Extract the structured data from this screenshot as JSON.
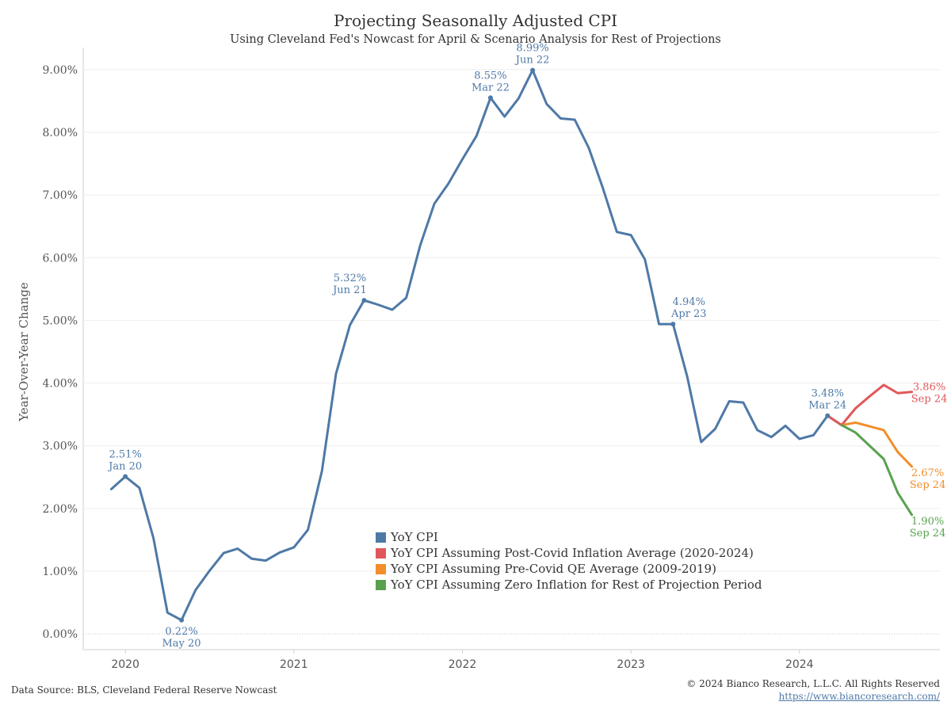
{
  "title": "Projecting Seasonally Adjusted CPI",
  "subtitle": "Using Cleveland Fed's Nowcast for April & Scenario Analysis for Rest of Projections",
  "source": "Data Source: BLS, Cleveland Federal Reserve Nowcast",
  "copyright": "© 2024 Bianco Research, L.L.C. All Rights Reserved",
  "url": "https://www.biancoresearch.com/",
  "chart_data": {
    "type": "line",
    "ylabel": "Year-Over-Year Change",
    "xlabel": "",
    "ylim": [
      -0.25,
      9.25
    ],
    "yticks": [
      0,
      1,
      2,
      3,
      4,
      5,
      6,
      7,
      8,
      9
    ],
    "ytick_labels": [
      "0.00%",
      "1.00%",
      "2.00%",
      "3.00%",
      "4.00%",
      "5.00%",
      "6.00%",
      "7.00%",
      "8.00%",
      "9.00%"
    ],
    "xticks": [
      "2020-01",
      "2021-01",
      "2022-01",
      "2023-01",
      "2024-01"
    ],
    "xtick_labels": [
      "2020",
      "2021",
      "2022",
      "2023",
      "2024"
    ],
    "xlim": [
      "2019-10",
      "2024-11"
    ],
    "grid": true,
    "legend_position": "bottom-center",
    "series": [
      {
        "name": "YoY CPI",
        "color": "#4e79a7",
        "x": [
          "2019-12",
          "2020-01",
          "2020-02",
          "2020-03",
          "2020-04",
          "2020-05",
          "2020-06",
          "2020-07",
          "2020-08",
          "2020-09",
          "2020-10",
          "2020-11",
          "2020-12",
          "2021-01",
          "2021-02",
          "2021-03",
          "2021-04",
          "2021-05",
          "2021-06",
          "2021-07",
          "2021-08",
          "2021-09",
          "2021-10",
          "2021-11",
          "2021-12",
          "2022-01",
          "2022-02",
          "2022-03",
          "2022-04",
          "2022-05",
          "2022-06",
          "2022-07",
          "2022-08",
          "2022-09",
          "2022-10",
          "2022-11",
          "2022-12",
          "2023-01",
          "2023-02",
          "2023-03",
          "2023-04",
          "2023-05",
          "2023-06",
          "2023-07",
          "2023-08",
          "2023-09",
          "2023-10",
          "2023-11",
          "2023-12",
          "2024-01",
          "2024-02",
          "2024-03",
          "2024-04"
        ],
        "y": [
          2.31,
          2.51,
          2.33,
          1.53,
          0.34,
          0.22,
          0.7,
          1.01,
          1.29,
          1.36,
          1.2,
          1.17,
          1.3,
          1.38,
          1.66,
          2.6,
          4.15,
          4.93,
          5.32,
          5.25,
          5.17,
          5.36,
          6.2,
          6.86,
          7.18,
          7.57,
          7.94,
          8.55,
          8.25,
          8.54,
          8.99,
          8.45,
          8.22,
          8.2,
          7.75,
          7.11,
          6.41,
          6.36,
          5.97,
          4.94,
          4.94,
          4.11,
          3.06,
          3.27,
          3.71,
          3.69,
          3.25,
          3.14,
          3.32,
          3.11,
          3.17,
          3.48,
          3.33
        ]
      },
      {
        "name": "YoY CPI Assuming Post-Covid Inflation Average (2020-2024)",
        "color": "#e15759",
        "x": [
          "2024-03",
          "2024-04",
          "2024-05",
          "2024-06",
          "2024-07",
          "2024-08",
          "2024-09"
        ],
        "y": [
          3.48,
          3.33,
          3.6,
          3.79,
          3.97,
          3.84,
          3.86
        ]
      },
      {
        "name": "YoY CPI Assuming Pre-Covid QE Average (2009-2019)",
        "color": "#f28e2b",
        "x": [
          "2024-04",
          "2024-05",
          "2024-06",
          "2024-07",
          "2024-08",
          "2024-09"
        ],
        "y": [
          3.33,
          3.37,
          3.31,
          3.25,
          2.9,
          2.67
        ]
      },
      {
        "name": "YoY CPI Assuming Zero Inflation for Rest of Projection Period",
        "color": "#59a14f",
        "x": [
          "2024-04",
          "2024-05",
          "2024-06",
          "2024-07",
          "2024-08",
          "2024-09"
        ],
        "y": [
          3.33,
          3.21,
          3.0,
          2.79,
          2.25,
          1.9
        ]
      }
    ],
    "annotations": [
      {
        "x": "2020-01",
        "y": 2.51,
        "value": "2.51%",
        "date": "Jan 20",
        "series": 0,
        "pos": "above"
      },
      {
        "x": "2020-05",
        "y": 0.22,
        "value": "0.22%",
        "date": "May 20",
        "series": 0,
        "pos": "below"
      },
      {
        "x": "2021-06",
        "y": 5.32,
        "value": "5.32%",
        "date": "Jun 21",
        "series": 0,
        "pos": "above-left"
      },
      {
        "x": "2022-03",
        "y": 8.55,
        "value": "8.55%",
        "date": "Mar 22",
        "series": 0,
        "pos": "above"
      },
      {
        "x": "2022-06",
        "y": 8.99,
        "value": "8.99%",
        "date": "Jun 22",
        "series": 0,
        "pos": "above"
      },
      {
        "x": "2023-04",
        "y": 4.94,
        "value": "4.94%",
        "date": "Apr 23",
        "series": 0,
        "pos": "above-right"
      },
      {
        "x": "2024-03",
        "y": 3.48,
        "value": "3.48%",
        "date": "Mar 24",
        "series": 0,
        "pos": "above"
      },
      {
        "x": "2024-09",
        "y": 3.86,
        "value": "3.86%",
        "date": "Sep 24",
        "series": 1,
        "pos": "right"
      },
      {
        "x": "2024-09",
        "y": 2.67,
        "value": "2.67%",
        "date": "Sep 24",
        "series": 2,
        "pos": "right-below"
      },
      {
        "x": "2024-09",
        "y": 1.9,
        "value": "1.90%",
        "date": "Sep 24",
        "series": 3,
        "pos": "right-below"
      }
    ]
  }
}
